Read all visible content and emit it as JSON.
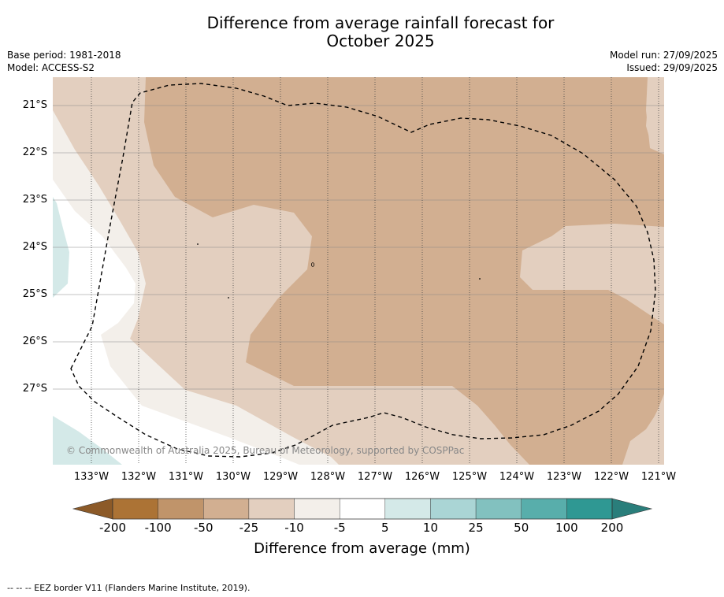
{
  "title": {
    "line1": "Difference from average rainfall forecast for",
    "line2": "October 2025"
  },
  "meta": {
    "base_period": "Base period: 1981-2018",
    "model": "Model: ACCESS-S2",
    "model_run": "Model run: 27/09/2025",
    "issued": "Issued: 29/09/2025"
  },
  "map": {
    "latitudes": [
      "21°S",
      "22°S",
      "23°S",
      "24°S",
      "25°S",
      "26°S",
      "27°S"
    ],
    "longitudes": [
      "133°W",
      "132°W",
      "131°W",
      "130°W",
      "129°W",
      "128°W",
      "127°W",
      "126°W",
      "125°W",
      "124°W",
      "123°W",
      "122°W",
      "121°W"
    ],
    "copyright": "© Commonwealth of Australia 2025, Bureau of Meteorology, supported by COSPPac"
  },
  "colorbar": {
    "labels": [
      "-200",
      "-100",
      "-50",
      "-25",
      "-10",
      "-5",
      "5",
      "10",
      "25",
      "50",
      "100",
      "200"
    ],
    "colors": [
      "#ac7335",
      "#c0946a",
      "#d2af91",
      "#e3cfbf",
      "#f3efea",
      "#ffffff",
      "#d4e9e8",
      "#aad5d5",
      "#82c1bf",
      "#58aeab",
      "#2f9893"
    ],
    "low_color": "#8c5a28",
    "high_color": "#2a7e7b",
    "title": "Difference from average (mm)"
  },
  "footnote": "--  --  -- EEZ border V11 (Flanders Marine Institute, 2019)."
}
